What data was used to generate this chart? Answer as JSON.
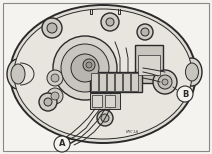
{
  "bg_color": "#e8e5e0",
  "border_color": "#333333",
  "line_color": "#2a2a2a",
  "fill_light": "#d8d4cc",
  "fill_mid": "#c8c4bb",
  "fill_dark": "#b8b4aa",
  "label_A": "A",
  "label_B": "B",
  "label_code": "KMC1A",
  "figsize": [
    2.12,
    1.54
  ],
  "dpi": 100
}
